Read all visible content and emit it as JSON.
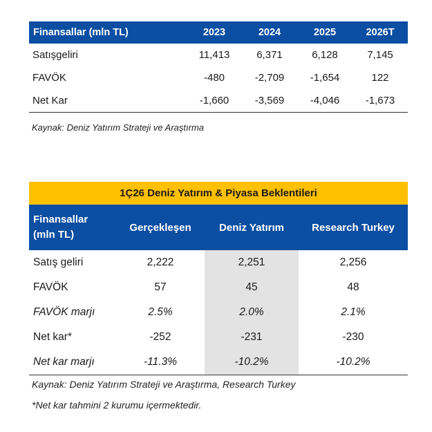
{
  "table1": {
    "headers": [
      "Finansallar (mln TL)",
      "2023",
      "2024",
      "2025",
      "2026T"
    ],
    "rows": [
      [
        "Satışgeliri",
        "11,413",
        "6,371",
        "6,128",
        "7,145"
      ],
      [
        "FAVÖK",
        "-480",
        "-2,709",
        "-1,654",
        "122"
      ],
      [
        "Net Kar",
        "-1,660",
        "-3,569",
        "-4,046",
        "-1,673"
      ]
    ],
    "source": "Kaynak: Deniz Yatırım Strateji ve Araştırma"
  },
  "table2": {
    "title": "1Ç26 Deniz Yatırım & Piyasa Beklentileri",
    "header_first_line1": "Finansallar",
    "header_first_line2": "(mln TL)",
    "headers": [
      "Gerçekleşen",
      "Deniz Yatırım",
      "Research Turkey"
    ],
    "rows": [
      [
        "Satış geliri",
        "2,222",
        "2,251",
        "2,256"
      ],
      [
        "FAVÖK",
        "57",
        "45",
        "48"
      ],
      [
        "FAVÖK marjı",
        "2.5%",
        "2.0%",
        "2.1%"
      ],
      [
        "Net kar*",
        "-252",
        "-231",
        "-230"
      ],
      [
        "Net kar marjı",
        "-11.3%",
        "-10.2%",
        "-10.2%"
      ]
    ],
    "source": "Kaynak: Deniz Yatırım Strateji ve Araştırma, Research Turkey",
    "note": "*Net kar tahmini 2 kurumu içermektedir."
  },
  "colors": {
    "header_blue": "#0b4ea2",
    "banner_yellow": "#ffc000",
    "shade_gray": "#e3e3e3"
  }
}
